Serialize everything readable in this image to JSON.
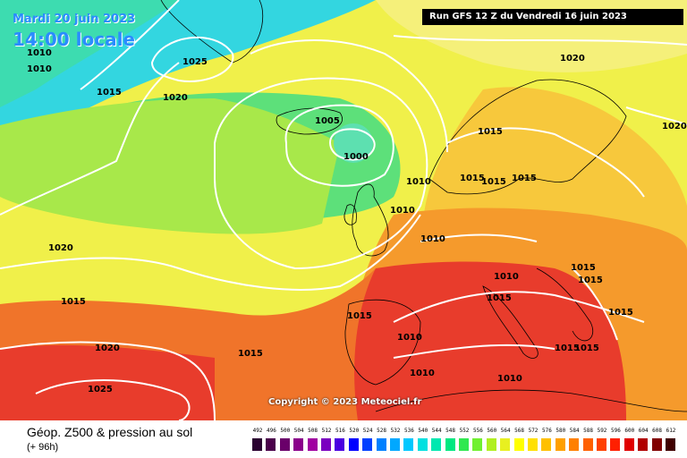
{
  "header": {
    "date": "Mardi 20 juin 2023",
    "time": "14:00 locale",
    "run": "Run GFS 12 Z du Vendredi 16 juin 2023"
  },
  "copyright": "Copyright © 2023 Meteociel.fr",
  "footer": {
    "title": "Géop. Z500 & pression au sol",
    "subtitle": "(+ 96h)"
  },
  "colors": {
    "deep_blue": "#4a9be8",
    "cyan": "#33d6e0",
    "teal": "#3ddcb0",
    "light_green": "#5de07a",
    "green_yellow": "#a8e84a",
    "yellow": "#f0f04a",
    "pale_yellow": "#f5f07a",
    "orange_yellow": "#f7c83c",
    "orange": "#f59a2c",
    "deep_orange": "#f0742a",
    "red": "#e83c2c",
    "isobar": "#ffffff",
    "coast": "#000000"
  },
  "isobar_labels": [
    "1010",
    "1010",
    "1025",
    "1015",
    "1020",
    "1005",
    "1000",
    "1020",
    "1015",
    "1015",
    "1015",
    "1015",
    "1020",
    "1010",
    "1010",
    "1010",
    "1020",
    "1015",
    "1010",
    "1015",
    "1015",
    "1015",
    "1015",
    "1015",
    "1010",
    "1015",
    "1015",
    "1020",
    "1015",
    "1025",
    "1010",
    "1010"
  ],
  "scale": {
    "values": [
      "492",
      "496",
      "500",
      "504",
      "508",
      "512",
      "516",
      "520",
      "524",
      "528",
      "532",
      "536",
      "540",
      "544",
      "548",
      "552",
      "556",
      "560",
      "564",
      "568",
      "572",
      "576",
      "580",
      "584",
      "588",
      "592",
      "596",
      "600",
      "604",
      "608",
      "612"
    ],
    "colors": [
      "#2a0030",
      "#4a004a",
      "#6a006a",
      "#8a008a",
      "#a000a0",
      "#7a00c0",
      "#4a00e0",
      "#0000ff",
      "#0040ff",
      "#0080ff",
      "#00a8ff",
      "#00c8ff",
      "#00e0e0",
      "#00e8b0",
      "#00e880",
      "#30e850",
      "#70f030",
      "#b0f020",
      "#e8f020",
      "#ffff00",
      "#ffe000",
      "#ffc000",
      "#ffa000",
      "#ff8000",
      "#ff6000",
      "#ff4000",
      "#ff2000",
      "#e00000",
      "#b00000",
      "#800000",
      "#400000"
    ]
  }
}
